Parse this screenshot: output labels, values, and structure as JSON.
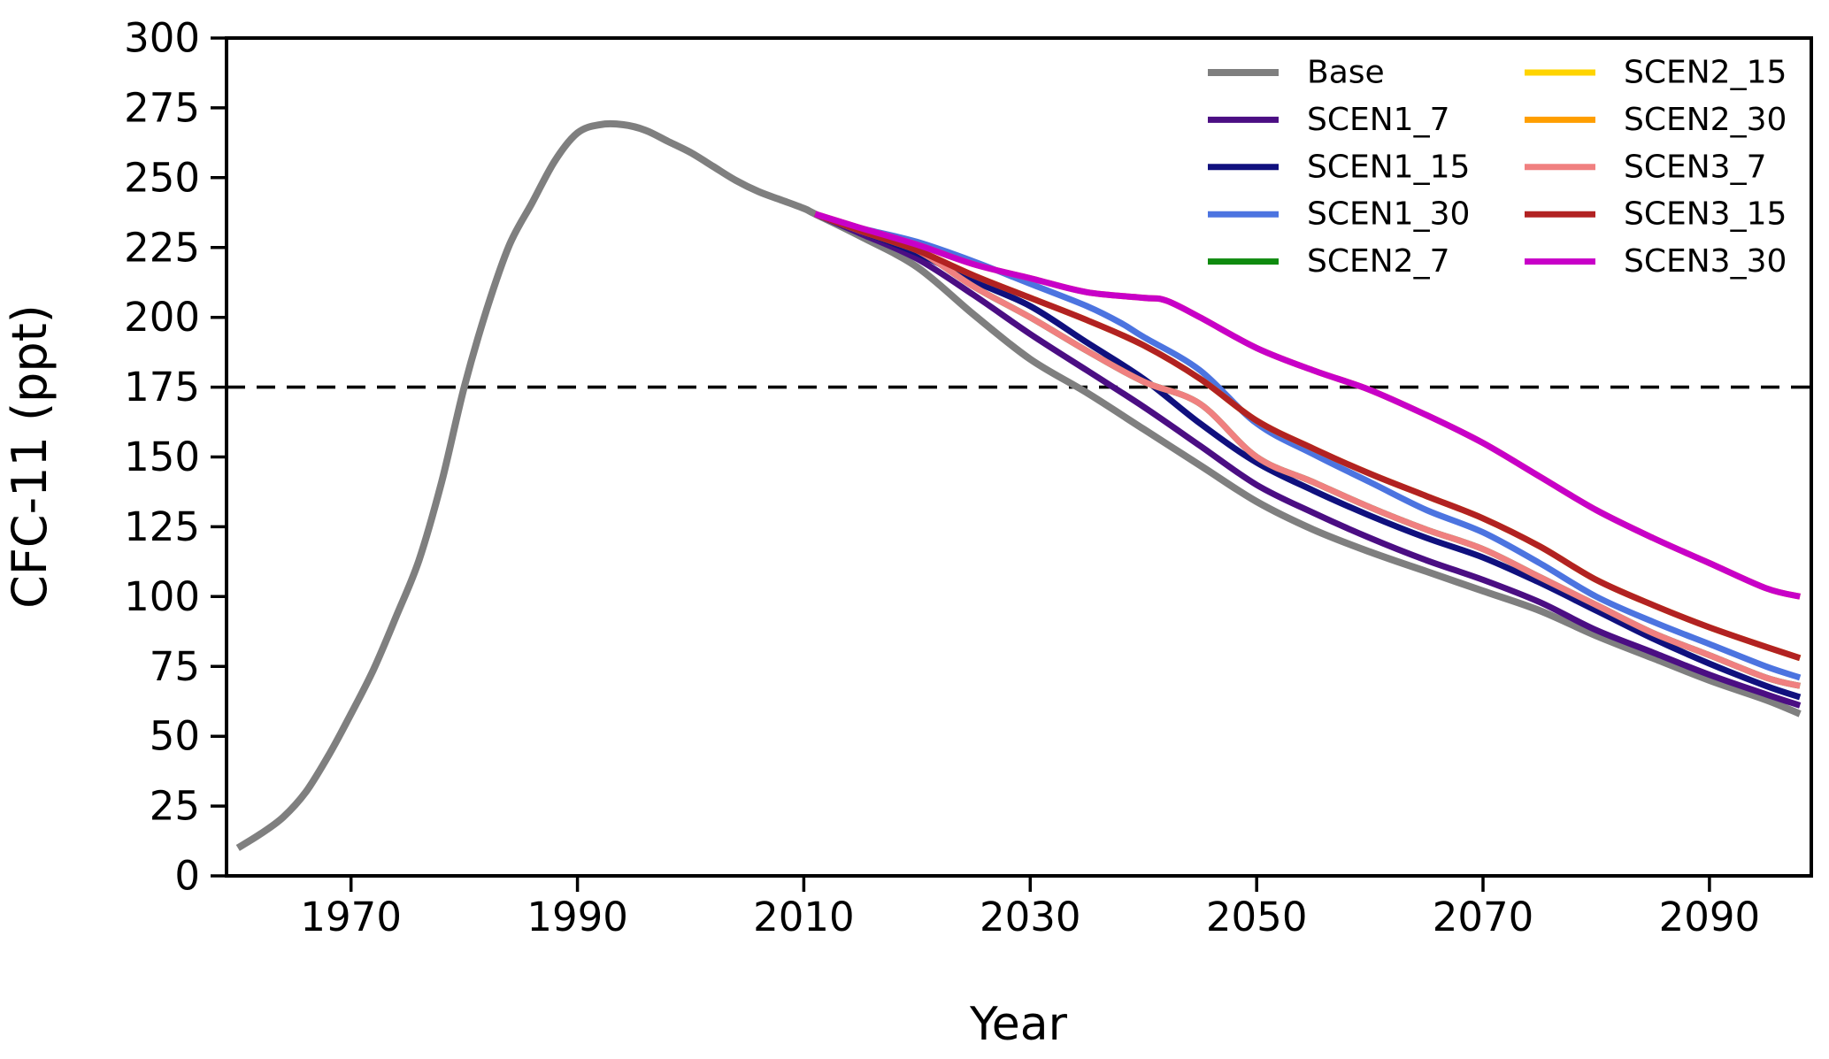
{
  "figure": {
    "xlabel": "Year",
    "ylabel": "CFC-11 (ppt)"
  },
  "legend": {
    "position": "upper right",
    "columns": 2,
    "entries": [
      {
        "label": "Base",
        "color": "#7f7f7f"
      },
      {
        "label": "SCEN1_7",
        "color": "#4b0e83"
      },
      {
        "label": "SCEN1_15",
        "color": "#10107e"
      },
      {
        "label": "SCEN1_30",
        "color": "#4c74e0"
      },
      {
        "label": "SCEN2_7",
        "color": "#0e8a0e"
      },
      {
        "label": "SCEN2_15",
        "color": "#ffd400"
      },
      {
        "label": "SCEN2_30",
        "color": "#ff9e00"
      },
      {
        "label": "SCEN3_7",
        "color": "#f08080"
      },
      {
        "label": "SCEN3_15",
        "color": "#b22222"
      },
      {
        "label": "SCEN3_30",
        "color": "#c800c8"
      }
    ]
  },
  "chart_data": {
    "type": "line",
    "title": "",
    "xlabel": "Year",
    "ylabel": "CFC-11 (ppt)",
    "xlim": [
      1959,
      2099
    ],
    "ylim": [
      0,
      300
    ],
    "xticks": [
      1970,
      1990,
      2010,
      2030,
      2050,
      2070,
      2090
    ],
    "yticks": [
      0,
      25,
      50,
      75,
      100,
      125,
      150,
      175,
      200,
      225,
      250,
      275,
      300
    ],
    "grid": false,
    "legend_position": "upper right",
    "reference_line": {
      "y": 175,
      "style": "dashed",
      "color": "#000000"
    },
    "series": [
      {
        "name": "Base",
        "color": "#7f7f7f",
        "points": [
          [
            1960,
            10
          ],
          [
            1962,
            15
          ],
          [
            1964,
            21
          ],
          [
            1966,
            30
          ],
          [
            1968,
            43
          ],
          [
            1970,
            58
          ],
          [
            1972,
            74
          ],
          [
            1974,
            93
          ],
          [
            1976,
            113
          ],
          [
            1978,
            141
          ],
          [
            1980,
            175
          ],
          [
            1982,
            203
          ],
          [
            1984,
            226
          ],
          [
            1986,
            241
          ],
          [
            1988,
            256
          ],
          [
            1990,
            266
          ],
          [
            1992,
            269
          ],
          [
            1994,
            269
          ],
          [
            1996,
            267
          ],
          [
            1998,
            263
          ],
          [
            2000,
            259
          ],
          [
            2002,
            254
          ],
          [
            2004,
            249
          ],
          [
            2006,
            245
          ],
          [
            2008,
            242
          ],
          [
            2010,
            239
          ],
          [
            2011,
            237
          ],
          [
            2015,
            229
          ],
          [
            2020,
            218
          ],
          [
            2025,
            201
          ],
          [
            2030,
            185
          ],
          [
            2035,
            173
          ],
          [
            2040,
            160
          ],
          [
            2045,
            147
          ],
          [
            2050,
            134
          ],
          [
            2055,
            124
          ],
          [
            2060,
            116
          ],
          [
            2065,
            109
          ],
          [
            2070,
            102
          ],
          [
            2075,
            95
          ],
          [
            2080,
            86
          ],
          [
            2085,
            78
          ],
          [
            2090,
            70
          ],
          [
            2095,
            63
          ],
          [
            2098,
            58
          ]
        ]
      },
      {
        "name": "SCEN1_7",
        "color": "#4b0e83",
        "points": [
          [
            2011,
            237
          ],
          [
            2015,
            230
          ],
          [
            2020,
            221
          ],
          [
            2025,
            208
          ],
          [
            2030,
            194
          ],
          [
            2035,
            181
          ],
          [
            2040,
            168
          ],
          [
            2045,
            154
          ],
          [
            2050,
            140
          ],
          [
            2055,
            130
          ],
          [
            2060,
            121
          ],
          [
            2065,
            113
          ],
          [
            2070,
            106
          ],
          [
            2075,
            98
          ],
          [
            2080,
            88
          ],
          [
            2085,
            80
          ],
          [
            2090,
            72
          ],
          [
            2095,
            65
          ],
          [
            2098,
            61
          ]
        ]
      },
      {
        "name": "SCEN1_15",
        "color": "#10107e",
        "points": [
          [
            2011,
            237
          ],
          [
            2015,
            231
          ],
          [
            2020,
            223
          ],
          [
            2025,
            213
          ],
          [
            2030,
            204
          ],
          [
            2035,
            191
          ],
          [
            2040,
            178
          ],
          [
            2045,
            162
          ],
          [
            2050,
            148
          ],
          [
            2055,
            138
          ],
          [
            2060,
            129
          ],
          [
            2065,
            121
          ],
          [
            2070,
            114
          ],
          [
            2075,
            105
          ],
          [
            2080,
            95
          ],
          [
            2085,
            85
          ],
          [
            2090,
            76
          ],
          [
            2095,
            68
          ],
          [
            2098,
            64
          ]
        ]
      },
      {
        "name": "SCEN1_30",
        "color": "#4c74e0",
        "points": [
          [
            2011,
            237
          ],
          [
            2015,
            232
          ],
          [
            2020,
            227
          ],
          [
            2025,
            220
          ],
          [
            2030,
            212
          ],
          [
            2035,
            204
          ],
          [
            2038,
            198
          ],
          [
            2040,
            193
          ],
          [
            2045,
            181
          ],
          [
            2050,
            162
          ],
          [
            2055,
            151
          ],
          [
            2060,
            141
          ],
          [
            2065,
            131
          ],
          [
            2070,
            123
          ],
          [
            2075,
            112
          ],
          [
            2080,
            100
          ],
          [
            2085,
            91
          ],
          [
            2090,
            83
          ],
          [
            2095,
            75
          ],
          [
            2098,
            71
          ]
        ]
      },
      {
        "name": "SCEN2_7",
        "color": "#0e8a0e",
        "points": [
          [
            2011,
            237
          ],
          [
            2015,
            231
          ],
          [
            2020,
            224
          ],
          [
            2025,
            211
          ],
          [
            2030,
            200
          ],
          [
            2035,
            188
          ],
          [
            2040,
            177
          ],
          [
            2045,
            169
          ],
          [
            2050,
            150
          ],
          [
            2055,
            141
          ],
          [
            2060,
            132
          ],
          [
            2065,
            124
          ],
          [
            2070,
            117
          ],
          [
            2075,
            107
          ],
          [
            2080,
            97
          ],
          [
            2085,
            87
          ],
          [
            2090,
            79
          ],
          [
            2095,
            71
          ],
          [
            2098,
            68
          ]
        ]
      },
      {
        "name": "SCEN2_15",
        "color": "#ffd400",
        "points": [
          [
            2011,
            237
          ],
          [
            2015,
            231
          ],
          [
            2020,
            224
          ],
          [
            2025,
            215
          ],
          [
            2030,
            207
          ],
          [
            2035,
            199
          ],
          [
            2040,
            190
          ],
          [
            2045,
            178
          ],
          [
            2050,
            163
          ],
          [
            2055,
            153
          ],
          [
            2060,
            144
          ],
          [
            2065,
            136
          ],
          [
            2070,
            128
          ],
          [
            2075,
            118
          ],
          [
            2080,
            106
          ],
          [
            2085,
            97
          ],
          [
            2090,
            89
          ],
          [
            2095,
            82
          ],
          [
            2098,
            78
          ]
        ]
      },
      {
        "name": "SCEN2_30",
        "color": "#ff9e00",
        "points": [
          [
            2011,
            237
          ],
          [
            2015,
            232
          ],
          [
            2020,
            226
          ],
          [
            2025,
            219
          ],
          [
            2030,
            214
          ],
          [
            2035,
            209
          ],
          [
            2040,
            207
          ],
          [
            2042,
            206
          ],
          [
            2045,
            200
          ],
          [
            2050,
            189
          ],
          [
            2055,
            181
          ],
          [
            2060,
            174
          ],
          [
            2065,
            165
          ],
          [
            2070,
            155
          ],
          [
            2075,
            143
          ],
          [
            2080,
            131
          ],
          [
            2085,
            121
          ],
          [
            2090,
            112
          ],
          [
            2095,
            103
          ],
          [
            2098,
            100
          ]
        ]
      },
      {
        "name": "SCEN3_7",
        "color": "#f08080",
        "points": [
          [
            2011,
            237
          ],
          [
            2015,
            231
          ],
          [
            2020,
            224
          ],
          [
            2025,
            211
          ],
          [
            2030,
            200
          ],
          [
            2035,
            188
          ],
          [
            2040,
            177
          ],
          [
            2045,
            169
          ],
          [
            2050,
            150
          ],
          [
            2055,
            141
          ],
          [
            2060,
            132
          ],
          [
            2065,
            124
          ],
          [
            2070,
            117
          ],
          [
            2075,
            107
          ],
          [
            2080,
            97
          ],
          [
            2085,
            87
          ],
          [
            2090,
            79
          ],
          [
            2095,
            71
          ],
          [
            2098,
            68
          ]
        ]
      },
      {
        "name": "SCEN3_15",
        "color": "#b22222",
        "points": [
          [
            2011,
            237
          ],
          [
            2015,
            231
          ],
          [
            2020,
            224
          ],
          [
            2025,
            215
          ],
          [
            2030,
            207
          ],
          [
            2035,
            199
          ],
          [
            2040,
            190
          ],
          [
            2045,
            178
          ],
          [
            2050,
            163
          ],
          [
            2055,
            153
          ],
          [
            2060,
            144
          ],
          [
            2065,
            136
          ],
          [
            2070,
            128
          ],
          [
            2075,
            118
          ],
          [
            2080,
            106
          ],
          [
            2085,
            97
          ],
          [
            2090,
            89
          ],
          [
            2095,
            82
          ],
          [
            2098,
            78
          ]
        ]
      },
      {
        "name": "SCEN3_30",
        "color": "#c800c8",
        "points": [
          [
            2011,
            237
          ],
          [
            2015,
            232
          ],
          [
            2020,
            226
          ],
          [
            2025,
            219
          ],
          [
            2030,
            214
          ],
          [
            2035,
            209
          ],
          [
            2040,
            207
          ],
          [
            2042,
            206
          ],
          [
            2045,
            200
          ],
          [
            2050,
            189
          ],
          [
            2055,
            181
          ],
          [
            2060,
            174
          ],
          [
            2065,
            165
          ],
          [
            2070,
            155
          ],
          [
            2075,
            143
          ],
          [
            2080,
            131
          ],
          [
            2085,
            121
          ],
          [
            2090,
            112
          ],
          [
            2095,
            103
          ],
          [
            2098,
            100
          ]
        ]
      }
    ]
  }
}
